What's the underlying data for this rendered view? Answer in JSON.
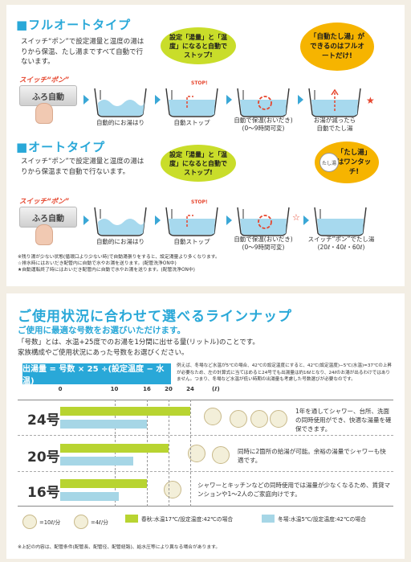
{
  "full_auto": {
    "title": "■フルオートタイプ",
    "desc": "スイッチ“ポン”で設定湯量と温度の湯はりから保温、たし湯まですべて自動で行ないます。",
    "bubble_green": "設定「湯量」と「温度」になると自動でストップ!",
    "bubble_orange": "「自動たし湯」ができるのはフルオートだけ!",
    "switch_label": "スイッチ“ポン”",
    "switch_button": "ふろ自動",
    "stop_label": "STOP!",
    "steps": [
      "自動的にお湯はり",
      "自動ストップ",
      "自動で保温(おいだき)\n(0〜9時間可変)",
      "お湯が減ったら\n自動でたし湯"
    ]
  },
  "auto": {
    "title": "■オートタイプ",
    "desc": "スイッチ“ポン”で設定湯量と温度の湯はりから保温まで自動で行ないます。",
    "bubble_green": "設定「湯量」と「温度」になると自動でストップ!",
    "bubble_orange": "「たし湯」はワンタッチ!",
    "bubble_orange_tag": "たし湯",
    "switch_label": "スイッチ“ポン”",
    "switch_button": "ふろ自動",
    "stop_label": "STOP!",
    "steps": [
      "自動的にお湯はり",
      "自動ストップ",
      "自動で保温(おいだき)\n(0〜9時間可変)",
      "スイッチ“ポン”でたし湯\n(20ℓ・40ℓ・60ℓ)"
    ]
  },
  "notes": [
    "※残り湯が少ない状態(循環口より少ない時)で自動湯張りをすると、設定湯量より多くなります。",
    "☆排水時にはおいだき配管内に自動で水やお湯を送ります。(配管洗浄ON中)",
    "★自動運転終了時にはおいだき配管内に自動で水やお湯を送ります。(配管洗浄ON中)"
  ],
  "lineup": {
    "title": "ご使用状況に合わせて選べるラインナップ",
    "subtitle": "ご使用に最適な号数をお選びいただけます。",
    "intro": [
      "「号数」とは、水温+25度でのお湯を1分間に出せる量(リットル)のことです。",
      "家族構成やご使用状況にあった号数をお選びください。"
    ],
    "formula": "出湯量 = 号数 × 25 ÷(設定温度 − 水温)",
    "formula_note": "例えば、冬場など水温が5℃の場合、42℃の設定温度にすると、42℃(設定温度)−5℃(水温)=37℃の上昇が必要なため、左の計算式に当てはめると24号でも出湯量は約16ℓとなり、24ℓのお湯が出るわけではありません。つまり、冬場など水温が低い時期の出湯量も考慮した号数選びが必要なのです。",
    "axis_unit": "(ℓ)",
    "footnote": "※上記の内容は、配管条件(配管長、配管径、配管経路)、給水圧等により異なる場合があります。"
  },
  "chart_data": {
    "type": "bar",
    "categories": [
      "24号",
      "20号",
      "16号"
    ],
    "x_ticks": [
      0,
      10,
      16,
      20,
      24
    ],
    "x_unit": "ℓ",
    "xlim": [
      0,
      24
    ],
    "series": [
      {
        "name": "春秋:水温17℃/設定温度:42℃の場合",
        "color": "#b8d431",
        "values": [
          24,
          20,
          16
        ]
      },
      {
        "name": "冬場:水温5℃/設定温度:42℃の場合",
        "color": "#a6d6e6",
        "values": [
          16,
          13.5,
          10.8
        ]
      }
    ],
    "descriptions": [
      "1年を通してシャワー、台所、洗面の同時使用ができ、快適な湯量を確保できます。",
      "同時に2箇所の給湯が可能。余裕の湯量でシャワーも快適です。",
      "シャワーとキッチンなどの同時使用では湯量が少なくなるため、賃貸マンションや1〜2人のご家庭向けです。"
    ],
    "legend_icons": [
      {
        "icon": "shower-icon",
        "label": "=10ℓ/分"
      },
      {
        "icon": "faucet-icon",
        "label": "=4ℓ/分"
      }
    ]
  }
}
